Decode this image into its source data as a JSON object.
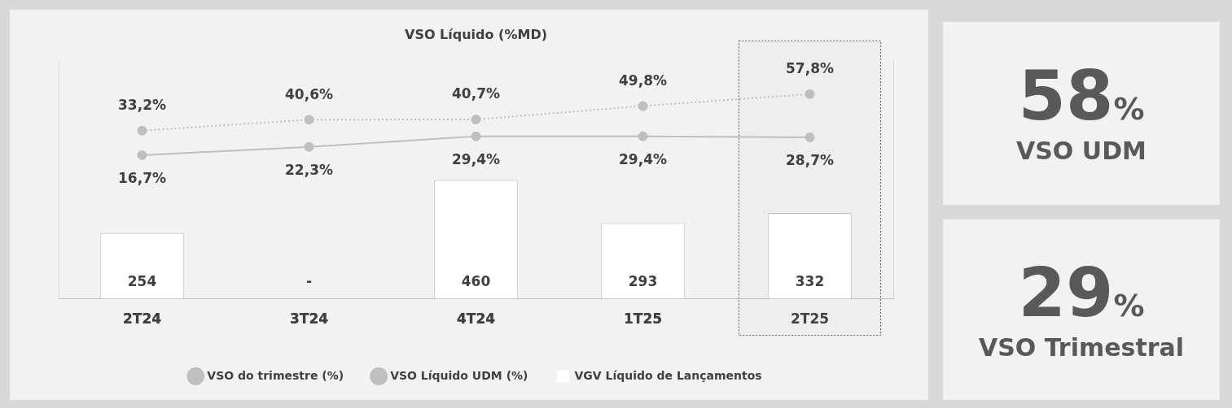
{
  "chart_data": [
    {
      "type": "bar",
      "title": "VSO Líquido (%MD)",
      "categories": [
        "2T24",
        "3T24",
        "4T24",
        "1T25",
        "2T25"
      ],
      "series": [
        {
          "name": "VGV Líquido de Lançamentos",
          "type": "bar",
          "color": "#ffffff",
          "values": [
            254,
            null,
            460,
            293,
            332
          ],
          "value_labels": [
            "254",
            "-",
            "460",
            "293",
            "332"
          ]
        },
        {
          "name": "VSO do trimestre (%)",
          "type": "line",
          "axis": "y2",
          "color": "#bfbfbf",
          "line_style": "solid",
          "values": [
            16.7,
            22.3,
            29.4,
            29.4,
            28.7
          ],
          "value_labels": [
            "16,7%",
            "22,3%",
            "29,4%",
            "29,4%",
            "28,7%"
          ]
        },
        {
          "name": "VSO Líquido UDM (%)",
          "type": "line",
          "axis": "y2",
          "color": "#bfbfbf",
          "line_style": "dotted",
          "values": [
            33.2,
            40.6,
            40.7,
            49.8,
            57.8
          ],
          "value_labels": [
            "33,2%",
            "40,6%",
            "40,7%",
            "49,8%",
            "57,8%"
          ]
        }
      ],
      "ylim": [
        0,
        920
      ],
      "y2lim": [
        -80,
        80
      ],
      "bands": [
        {
          "axis": "x",
          "from": "2T25",
          "to": "2T25",
          "color": "#eeeeee"
        }
      ],
      "tick_labels": "x",
      "grid": false,
      "legend": "bottom",
      "marker": "circle"
    },
    {
      "type": "other",
      "annotations": [
        "58%",
        "VSO UDM"
      ]
    },
    {
      "type": "other",
      "annotations": [
        "29%",
        "VSO Trimestral"
      ]
    }
  ]
}
